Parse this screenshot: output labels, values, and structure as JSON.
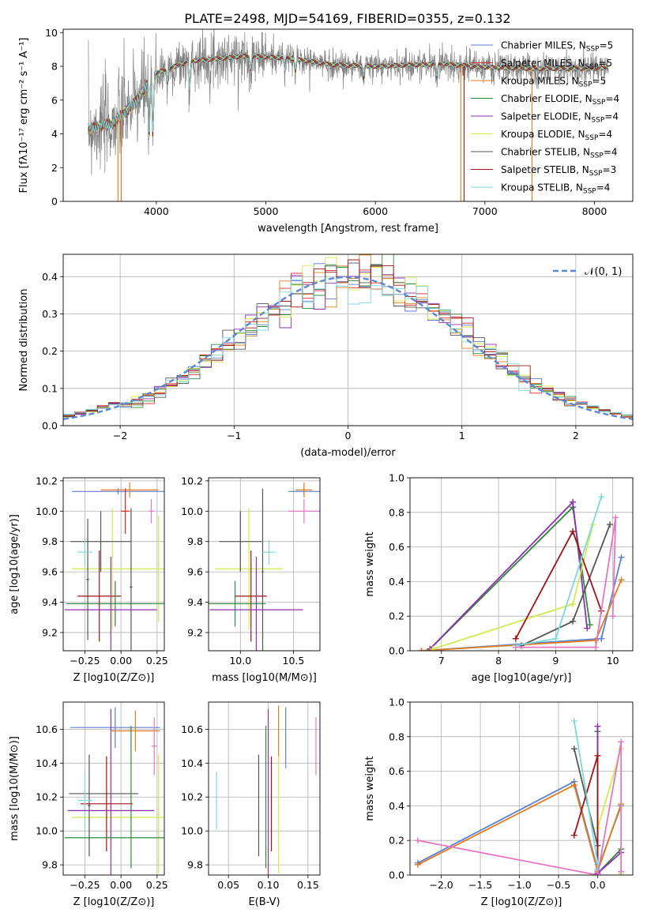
{
  "figure_title": "PLATE=2498, MJD=54169, FIBERID=0355, z=0.132",
  "chart_data": [
    {
      "id": "spectrum",
      "type": "line",
      "xlabel": "wavelength [Angstrom, rest frame]",
      "ylabel": "Flux [fλ10⁻¹⁷ erg cm⁻² s⁻¹ A⁻¹]",
      "xlim": [
        3150,
        8350
      ],
      "ylim": [
        0,
        10.2
      ],
      "xticks": [
        4000,
        5000,
        6000,
        7000,
        8000
      ],
      "yticks": [
        0,
        2,
        4,
        6,
        8,
        10
      ],
      "grid": false,
      "legend_position": "right",
      "legend": [
        "Chabrier MILES, N_SSP=5",
        "Salpeter MILES, N_SSP=5",
        "Kroupa MILES, N_SSP=5",
        "Chabrier ELODIE, N_SSP=4",
        "Salpeter ELODIE, N_SSP=4",
        "Kroupa ELODIE, N_SSP=4",
        "Chabrier STELIB, N_SSP=4",
        "Salpeter STELIB, N_SSP=3",
        "Kroupa STELIB, N_SSP=4"
      ],
      "legend_colors": [
        "#5b7fd3",
        "#d62728",
        "#e07c1e",
        "#2e8b3a",
        "#8e2fb0",
        "#d4e84f",
        "#555555",
        "#a01515",
        "#7fd8d8"
      ],
      "data_color": "#808080",
      "data_x_range": [
        3380,
        8130
      ],
      "continuum": [
        [
          3380,
          4.3
        ],
        [
          3600,
          4.6
        ],
        [
          3800,
          5.8
        ],
        [
          4000,
          7.6
        ],
        [
          4300,
          8.3
        ],
        [
          4800,
          8.6
        ],
        [
          5200,
          8.5
        ],
        [
          5600,
          8.1
        ],
        [
          6000,
          8.0
        ],
        [
          6600,
          8.15
        ],
        [
          7000,
          7.95
        ],
        [
          7500,
          7.85
        ],
        [
          8130,
          7.9
        ]
      ],
      "absorption_lines": [
        3934,
        3969,
        4102,
        4304,
        4861,
        5175,
        5270,
        5890,
        6563
      ],
      "dropouts": [
        [
          3650,
          6780
        ],
        [
          3680,
          6810
        ],
        [
          3680,
          7430
        ]
      ]
    },
    {
      "id": "residuals",
      "type": "area",
      "xlabel": "(data-model)/error",
      "ylabel": "Normed distribution",
      "xlim": [
        -2.5,
        2.5
      ],
      "ylim": [
        0,
        0.46
      ],
      "xticks": [
        -2,
        -1,
        0,
        1,
        2
      ],
      "yticks": [
        0,
        0.1,
        0.2,
        0.3,
        0.4
      ],
      "grid": true,
      "legend": [
        "𝒩(0, 1)"
      ],
      "legend_position": "top-right",
      "bin_width": 0.1,
      "reference_curve": "normal(0,1)"
    },
    {
      "id": "age-vs-Z",
      "type": "scatter",
      "xlabel": "Z [log10(Z/Z⊙)]",
      "ylabel": "age  [log10(age/yr)]",
      "xlim": [
        -0.4,
        0.3
      ],
      "ylim": [
        9.08,
        10.22
      ],
      "xticks": [
        -0.25,
        0,
        0.25
      ],
      "yticks": [
        9.2,
        9.4,
        9.6,
        9.8,
        10.0,
        10.2
      ],
      "points": [
        {
          "x": -0.02,
          "xerr": 0.32,
          "y": 10.13,
          "yerr": 0.02,
          "color": "#5b7fd3"
        },
        {
          "x": 0.06,
          "xerr": 0.2,
          "y": 10.14,
          "yerr": 0.05,
          "color": "#e07c1e"
        },
        {
          "x": 0.03,
          "xerr": 0.03,
          "y": 10.0,
          "yerr": 0.15,
          "color": "#d62728"
        },
        {
          "x": 0.26,
          "xerr": 0.04,
          "y": 9.62,
          "yerr": 0.35,
          "color": "#d4e84f"
        },
        {
          "x": -0.06,
          "xerr": 0.28,
          "y": 9.62,
          "yerr": 0.4,
          "color": "#d4e84f"
        },
        {
          "x": -0.14,
          "xerr": 0.21,
          "y": 9.8,
          "yerr": 0.2,
          "color": "#555555"
        },
        {
          "x": -0.23,
          "xerr": 0.01,
          "y": 9.55,
          "yerr": 0.4,
          "color": "#555555"
        },
        {
          "x": 0.07,
          "xerr": 0.01,
          "y": 9.5,
          "yerr": 0.52,
          "color": "#555555"
        },
        {
          "x": -0.25,
          "xerr": 0.05,
          "y": 9.73,
          "yerr": 0.08,
          "color": "#7fd8d8"
        },
        {
          "x": -0.15,
          "xerr": 0.15,
          "y": 9.44,
          "yerr": 0.3,
          "color": "#a01515"
        },
        {
          "x": -0.04,
          "xerr": 0.34,
          "y": 9.39,
          "yerr": 0.15,
          "color": "#2e8b3a"
        },
        {
          "x": -0.07,
          "xerr": 0.32,
          "y": 9.35,
          "yerr": 0.35,
          "color": "#8e2fb0"
        },
        {
          "x": 0.21,
          "xerr": 0.02,
          "y": 10.0,
          "yerr": 0.08,
          "color": "#e377c2"
        }
      ]
    },
    {
      "id": "age-vs-mass",
      "type": "scatter",
      "xlabel": "mass [log10(M/M⊙)]",
      "xlim": [
        9.7,
        10.75
      ],
      "ylim": [
        9.08,
        10.22
      ],
      "xticks": [
        10.0,
        10.5
      ],
      "yticks": [
        9.2,
        9.4,
        9.6,
        9.8,
        10.0,
        10.2
      ],
      "points": [
        {
          "x": 10.6,
          "xerr": 0.15,
          "y": 10.13,
          "yerr": 0.02,
          "color": "#5b7fd3"
        },
        {
          "x": 10.6,
          "xerr": 0.08,
          "y": 10.14,
          "yerr": 0.05,
          "color": "#e07c1e"
        },
        {
          "x": 10.6,
          "xerr": 0.15,
          "y": 10.0,
          "yerr": 0.08,
          "color": "#e377c2"
        },
        {
          "x": 10.08,
          "xerr": 0.32,
          "y": 9.62,
          "yerr": 0.4,
          "color": "#d4e84f"
        },
        {
          "x": 10.0,
          "xerr": 0.2,
          "y": 9.8,
          "yerr": 0.2,
          "color": "#555555"
        },
        {
          "x": 10.21,
          "xerr": 0.01,
          "y": 9.6,
          "yerr": 0.55,
          "color": "#555555"
        },
        {
          "x": 10.27,
          "xerr": 0.06,
          "y": 9.73,
          "yerr": 0.08,
          "color": "#7fd8d8"
        },
        {
          "x": 10.1,
          "xerr": 0.15,
          "y": 9.44,
          "yerr": 0.3,
          "color": "#a01515"
        },
        {
          "x": 9.95,
          "xerr": 0.29,
          "y": 9.39,
          "yerr": 0.15,
          "color": "#2e8b3a"
        },
        {
          "x": 10.15,
          "xerr": 0.44,
          "y": 9.35,
          "yerr": 0.35,
          "color": "#8e2fb0"
        }
      ]
    },
    {
      "id": "weight-vs-age",
      "type": "line",
      "xlabel": "age  [log10(age/yr)]",
      "ylabel": "mass weight",
      "xlim": [
        6.45,
        10.35
      ],
      "ylim": [
        0,
        1.0
      ],
      "xticks": [
        7,
        8,
        9,
        10
      ],
      "yticks": [
        0,
        0.2,
        0.4,
        0.6,
        0.8,
        1.0
      ],
      "series": [
        {
          "color": "#5b7fd3",
          "x": [
            6.65,
            9.8,
            10.15
          ],
          "y": [
            0.0,
            0.07,
            0.54
          ]
        },
        {
          "color": "#e07c1e",
          "x": [
            6.65,
            9.7,
            10.15
          ],
          "y": [
            0.0,
            0.06,
            0.41
          ]
        },
        {
          "color": "#2e8b3a",
          "x": [
            6.8,
            9.3,
            9.6
          ],
          "y": [
            0.01,
            0.83,
            0.15
          ]
        },
        {
          "color": "#8e2fb0",
          "x": [
            6.8,
            9.3,
            9.55
          ],
          "y": [
            0.01,
            0.86,
            0.13
          ]
        },
        {
          "color": "#d4e84f",
          "x": [
            6.85,
            9.3,
            9.65
          ],
          "y": [
            0.01,
            0.27,
            0.73
          ]
        },
        {
          "color": "#555555",
          "x": [
            8.4,
            9.3,
            9.95
          ],
          "y": [
            0.03,
            0.17,
            0.73
          ]
        },
        {
          "color": "#a01515",
          "x": [
            8.3,
            9.3,
            9.8
          ],
          "y": [
            0.07,
            0.69,
            0.23
          ]
        },
        {
          "color": "#7fd8d8",
          "x": [
            8.3,
            9.0,
            9.8
          ],
          "y": [
            0.03,
            0.07,
            0.89
          ]
        },
        {
          "color": "#e377c2",
          "x": [
            8.3,
            9.7,
            10.05,
            10.0
          ],
          "y": [
            0.02,
            0.02,
            0.77,
            0.2
          ]
        }
      ]
    },
    {
      "id": "mass-vs-Z",
      "type": "scatter",
      "xlabel": "Z [log10(Z/Z⊙)]",
      "ylabel": "mass [log10(M/M⊙)]",
      "xlim": [
        -0.4,
        0.3
      ],
      "ylim": [
        9.74,
        10.76
      ],
      "xticks": [
        -0.25,
        0,
        0.25
      ],
      "yticks": [
        9.8,
        10.0,
        10.2,
        10.4,
        10.6
      ],
      "points": [
        {
          "x": -0.04,
          "xerr": 0.31,
          "y": 10.61,
          "yerr": 0.12,
          "color": "#5b7fd3"
        },
        {
          "x": 0.1,
          "xerr": 0.17,
          "y": 10.59,
          "yerr": 0.12,
          "color": "#e07c1e"
        },
        {
          "x": 0.23,
          "xerr": 0.02,
          "y": 10.5,
          "yerr": 0.17,
          "color": "#e377c2"
        },
        {
          "x": 0.0,
          "xerr": 0.34,
          "y": 10.08,
          "yerr": 0.0,
          "color": "#d4e84f"
        },
        {
          "x": 0.26,
          "xerr": 0.01,
          "y": 10.1,
          "yerr": 0.35,
          "color": "#d4e84f"
        },
        {
          "x": -0.12,
          "xerr": 0.24,
          "y": 10.22,
          "yerr": 0.0,
          "color": "#555555"
        },
        {
          "x": -0.22,
          "xerr": 0.01,
          "y": 10.15,
          "yerr": 0.3,
          "color": "#555555"
        },
        {
          "x": -0.1,
          "xerr": 0.18,
          "y": 10.16,
          "yerr": 0.28,
          "color": "#a01515"
        },
        {
          "x": -0.25,
          "xerr": 0.05,
          "y": 10.18,
          "yerr": 0.17,
          "color": "#7fd8d8"
        },
        {
          "x": -0.04,
          "xerr": 0.35,
          "y": 9.96,
          "yerr": 0.0,
          "color": "#2e8b3a"
        },
        {
          "x": 0.07,
          "xerr": 0.0,
          "y": 10.2,
          "yerr": 0.42,
          "color": "#2e8b3a"
        },
        {
          "x": -0.07,
          "xerr": 0.3,
          "y": 10.12,
          "yerr": 0.6,
          "color": "#8e2fb0"
        }
      ]
    },
    {
      "id": "mass-vs-EBV",
      "type": "scatter",
      "xlabel": "E(B-V)",
      "xlim": [
        0.025,
        0.165
      ],
      "ylim": [
        9.74,
        10.76
      ],
      "xticks": [
        0.05,
        0.1,
        0.15
      ],
      "yticks": [
        9.8,
        10.0,
        10.2,
        10.4,
        10.6
      ],
      "points": [
        {
          "x": 0.035,
          "y": 10.18,
          "yerr": 0.17,
          "color": "#7fd8d8"
        },
        {
          "x": 0.088,
          "y": 10.15,
          "yerr": 0.3,
          "color": "#555555"
        },
        {
          "x": 0.097,
          "y": 10.2,
          "yerr": 0.42,
          "color": "#2e8b3a"
        },
        {
          "x": 0.1,
          "y": 10.12,
          "yerr": 0.6,
          "color": "#8e2fb0"
        },
        {
          "x": 0.104,
          "y": 10.16,
          "yerr": 0.28,
          "color": "#a01515"
        },
        {
          "x": 0.113,
          "y": 10.1,
          "yerr": 0.35,
          "color": "#d4e84f"
        },
        {
          "x": 0.113,
          "y": 10.59,
          "yerr": 0.15,
          "color": "#e07c1e"
        },
        {
          "x": 0.122,
          "y": 10.55,
          "yerr": 0.18,
          "color": "#5b7fd3"
        },
        {
          "x": 0.16,
          "y": 10.5,
          "yerr": 0.17,
          "color": "#e377c2"
        }
      ]
    },
    {
      "id": "weight-vs-Z",
      "type": "line",
      "xlabel": "Z [log10(Z/Z⊙)]",
      "ylabel": "mass weight",
      "xlim": [
        -2.4,
        0.45
      ],
      "ylim": [
        0,
        1.0
      ],
      "xticks": [
        -2.0,
        -1.5,
        -1.0,
        -0.5,
        0.0
      ],
      "yticks": [
        0,
        0.2,
        0.4,
        0.6,
        0.8,
        1.0
      ],
      "series": [
        {
          "color": "#5b7fd3",
          "x": [
            -2.3,
            -0.3,
            0.0,
            0.3
          ],
          "y": [
            0.07,
            0.54,
            0.03,
            0.4
          ]
        },
        {
          "color": "#e07c1e",
          "x": [
            -2.3,
            -0.3,
            0.0,
            0.3
          ],
          "y": [
            0.06,
            0.52,
            0.02,
            0.41
          ]
        },
        {
          "color": "#2e8b3a",
          "x": [
            0.0,
            0.0,
            0.3
          ],
          "y": [
            0.83,
            0.01,
            0.15
          ]
        },
        {
          "color": "#8e2fb0",
          "x": [
            0.0,
            0.0,
            0.3
          ],
          "y": [
            0.86,
            0.01,
            0.13
          ]
        },
        {
          "color": "#d4e84f",
          "x": [
            0.0,
            0.3,
            0.3
          ],
          "y": [
            0.27,
            0.73,
            0.01
          ]
        },
        {
          "color": "#555555",
          "x": [
            -0.3,
            0.0,
            0.0
          ],
          "y": [
            0.73,
            0.17,
            0.03
          ]
        },
        {
          "color": "#a01515",
          "x": [
            -0.3,
            0.0,
            0.0
          ],
          "y": [
            0.23,
            0.69,
            0.07
          ]
        },
        {
          "color": "#7fd8d8",
          "x": [
            -0.3,
            0.0,
            0.0
          ],
          "y": [
            0.89,
            0.07,
            0.03
          ]
        },
        {
          "color": "#e377c2",
          "x": [
            -2.3,
            0.0,
            0.3,
            0.3
          ],
          "y": [
            0.2,
            0.0,
            0.77,
            0.02
          ]
        }
      ]
    }
  ]
}
